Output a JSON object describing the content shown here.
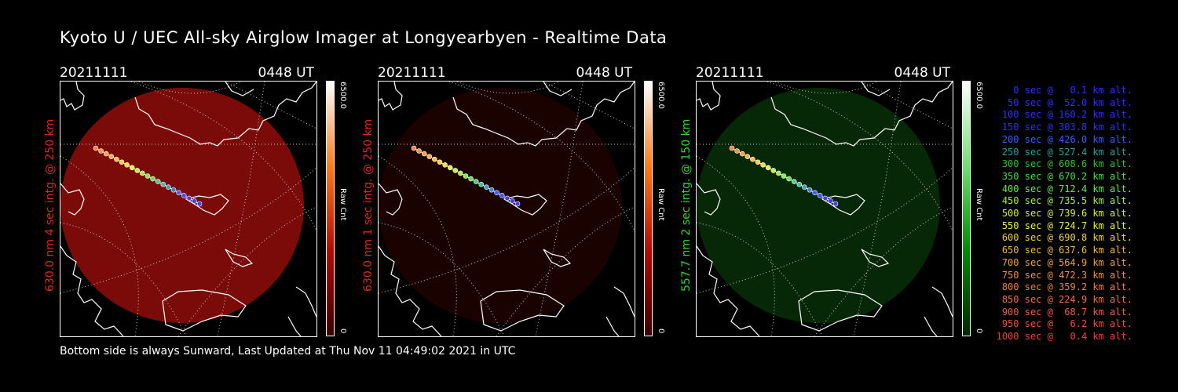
{
  "title": "Kyoto U / UEC All-sky Airglow Imager at Longyearbyen - Realtime Data",
  "footer": "Bottom side is always Sunward, Last Updated at Thu Nov 11 04:49:02 2021 in UTC",
  "panels": [
    {
      "date": "20211111",
      "time": "0448 UT",
      "side_label": "630.0 nm 4 sec intg. @ 250 km",
      "side_color": "#e0281e",
      "cbar_max": "6500.0",
      "cbar_unit": "Raw Cnt",
      "cbar_min": "0",
      "glow_color": "#7a0b08",
      "cbar_colors": [
        "#3a0000",
        "#b40a00",
        "#ff7a1a",
        "#ffffff"
      ]
    },
    {
      "date": "20211111",
      "time": "0448 UT",
      "side_label": "630.0 nm 1 sec intg. @ 250 km",
      "side_color": "#e0281e",
      "cbar_max": "6500.0",
      "cbar_unit": "Raw Cnt",
      "cbar_min": "0",
      "glow_color": "#1a0201",
      "cbar_colors": [
        "#3a0000",
        "#b40a00",
        "#ff7a1a",
        "#ffffff"
      ]
    },
    {
      "date": "20211111",
      "time": "0448 UT",
      "side_label": "557.7 nm 2 sec intg. @ 150 km",
      "side_color": "#2fd82f",
      "cbar_max": "6500.0",
      "cbar_unit": "Raw Cnt",
      "cbar_min": "0",
      "glow_color": "#072806",
      "cbar_colors": [
        "#002800",
        "#008a00",
        "#6fe06f",
        "#ffffff"
      ]
    }
  ],
  "legend": [
    {
      "text": "0 sec @   0.1 km alt.",
      "color": "#3030ff"
    },
    {
      "text": "50 sec @  52.0 km alt.",
      "color": "#3030ff"
    },
    {
      "text": "100 sec @ 160.2 km alt.",
      "color": "#3030ff"
    },
    {
      "text": "150 sec @ 303.8 km alt.",
      "color": "#3030ff"
    },
    {
      "text": "200 sec @ 426.0 km alt.",
      "color": "#3060ff"
    },
    {
      "text": "250 sec @ 527.4 km alt.",
      "color": "#2aa0a0"
    },
    {
      "text": "300 sec @ 608.6 km alt.",
      "color": "#30c030"
    },
    {
      "text": "350 sec @ 670.2 km alt.",
      "color": "#40e040"
    },
    {
      "text": "400 sec @ 712.4 km alt.",
      "color": "#60f040"
    },
    {
      "text": "450 sec @ 735.5 km alt.",
      "color": "#a0f040"
    },
    {
      "text": "500 sec @ 739.6 km alt.",
      "color": "#d0f040"
    },
    {
      "text": "550 sec @ 724.7 km alt.",
      "color": "#f0f040"
    },
    {
      "text": "600 sec @ 690.8 km alt.",
      "color": "#f0d040"
    },
    {
      "text": "650 sec @ 637.6 km alt.",
      "color": "#f0b840"
    },
    {
      "text": "700 sec @ 564.9 km alt.",
      "color": "#f0a040"
    },
    {
      "text": "750 sec @ 472.3 km alt.",
      "color": "#f09040"
    },
    {
      "text": "800 sec @ 359.2 km alt.",
      "color": "#f08040"
    },
    {
      "text": "850 sec @ 224.9 km alt.",
      "color": "#f07040"
    },
    {
      "text": "900 sec @  68.7 km alt.",
      "color": "#f06040"
    },
    {
      "text": "950 sec @   6.2 km alt.",
      "color": "#f05040"
    },
    {
      "text": "1000 sec @   0.4 km alt.",
      "color": "#f04040"
    }
  ]
}
